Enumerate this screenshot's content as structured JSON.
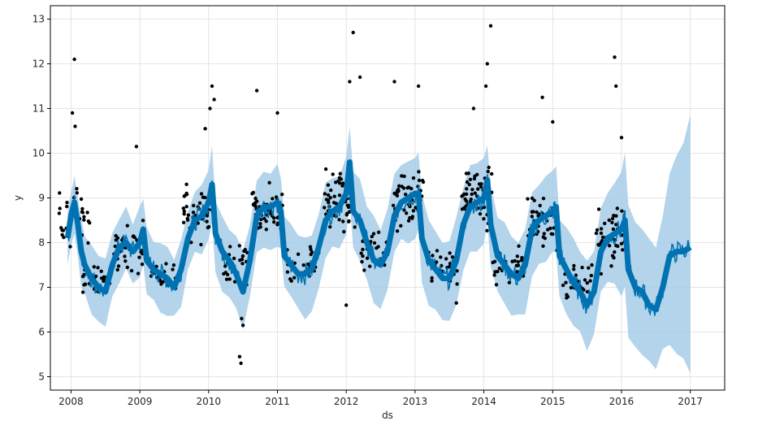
{
  "chart_data": {
    "type": "line",
    "title": "",
    "xlabel": "ds",
    "ylabel": "y",
    "xlim": [
      2007.7,
      2017.5
    ],
    "ylim": [
      4.7,
      13.3
    ],
    "x_ticks": [
      {
        "value": 2008,
        "label": "2008"
      },
      {
        "value": 2009,
        "label": "2009"
      },
      {
        "value": 2010,
        "label": "2010"
      },
      {
        "value": 2011,
        "label": "2011"
      },
      {
        "value": 2012,
        "label": "2012"
      },
      {
        "value": 2013,
        "label": "2013"
      },
      {
        "value": 2014,
        "label": "2014"
      },
      {
        "value": 2015,
        "label": "2015"
      },
      {
        "value": 2016,
        "label": "2016"
      },
      {
        "value": 2017,
        "label": "2017"
      }
    ],
    "y_ticks": [
      {
        "value": 5,
        "label": "5"
      },
      {
        "value": 6,
        "label": "6"
      },
      {
        "value": 7,
        "label": "7"
      },
      {
        "value": 8,
        "label": "8"
      },
      {
        "value": 9,
        "label": "9"
      },
      {
        "value": 10,
        "label": "10"
      },
      {
        "value": 11,
        "label": "11"
      },
      {
        "value": 12,
        "label": "12"
      },
      {
        "value": 13,
        "label": "13"
      }
    ],
    "grid": true,
    "colors": {
      "forecast": "#0072b2",
      "interval": "#a6cde8",
      "observations": "#000000",
      "grid": "#dddddd"
    },
    "forecast": {
      "x": [
        2007.95,
        2008.0,
        2008.05,
        2008.1,
        2008.15,
        2008.2,
        2008.3,
        2008.4,
        2008.5,
        2008.6,
        2008.7,
        2008.8,
        2008.9,
        2009.0,
        2009.05,
        2009.1,
        2009.2,
        2009.3,
        2009.4,
        2009.5,
        2009.6,
        2009.7,
        2009.8,
        2009.9,
        2010.0,
        2010.05,
        2010.1,
        2010.2,
        2010.3,
        2010.4,
        2010.5,
        2010.6,
        2010.7,
        2010.8,
        2010.9,
        2011.0,
        2011.05,
        2011.1,
        2011.2,
        2011.3,
        2011.4,
        2011.5,
        2011.6,
        2011.7,
        2011.8,
        2011.9,
        2012.0,
        2012.05,
        2012.1,
        2012.2,
        2012.3,
        2012.4,
        2012.5,
        2012.6,
        2012.7,
        2012.8,
        2012.9,
        2013.0,
        2013.05,
        2013.1,
        2013.2,
        2013.3,
        2013.4,
        2013.5,
        2013.6,
        2013.7,
        2013.8,
        2013.9,
        2014.0,
        2014.05,
        2014.1,
        2014.2,
        2014.3,
        2014.4,
        2014.5,
        2014.6,
        2014.7,
        2014.8,
        2014.9,
        2015.0,
        2015.05,
        2015.1,
        2015.2,
        2015.3,
        2015.4,
        2015.5,
        2015.6,
        2015.7,
        2015.8,
        2015.9,
        2016.0,
        2016.05,
        2016.1,
        2016.2,
        2016.3,
        2016.4,
        2016.5,
        2016.6,
        2016.7,
        2016.8,
        2016.9,
        2017.0
      ],
      "yhat": [
        8.1,
        8.6,
        8.9,
        8.4,
        7.8,
        7.5,
        7.2,
        7.0,
        6.9,
        7.5,
        7.9,
        8.0,
        7.8,
        8.0,
        8.3,
        7.6,
        7.4,
        7.3,
        7.2,
        7.0,
        7.4,
        8.1,
        8.5,
        8.6,
        8.9,
        9.3,
        8.2,
        7.8,
        7.6,
        7.3,
        6.9,
        7.6,
        8.6,
        8.8,
        8.8,
        8.9,
        8.7,
        7.7,
        7.5,
        7.3,
        7.3,
        7.4,
        7.9,
        8.5,
        8.7,
        8.8,
        9.1,
        9.8,
        8.7,
        8.5,
        8.0,
        7.6,
        7.5,
        7.8,
        8.6,
        8.9,
        9.0,
        9.1,
        9.1,
        8.1,
        7.6,
        7.4,
        7.2,
        7.2,
        7.6,
        8.4,
        8.8,
        8.9,
        9.0,
        9.4,
        8.4,
        7.7,
        7.5,
        7.3,
        7.2,
        7.5,
        8.3,
        8.5,
        8.6,
        8.7,
        8.8,
        7.7,
        7.4,
        7.1,
        6.9,
        6.6,
        6.9,
        7.8,
        8.1,
        8.2,
        8.3,
        8.5,
        7.4,
        7.0,
        6.9,
        6.6,
        6.5,
        7.0,
        7.7,
        7.8,
        7.8,
        7.9
      ],
      "yhat_lower": [
        7.5,
        8.0,
        8.2,
        7.6,
        7.0,
        6.8,
        6.5,
        6.3,
        6.2,
        6.8,
        7.2,
        7.3,
        7.1,
        7.3,
        7.5,
        6.9,
        6.6,
        6.5,
        6.4,
        6.3,
        6.6,
        7.3,
        7.7,
        7.8,
        8.1,
        8.4,
        7.4,
        7.0,
        6.8,
        6.5,
        6.1,
        6.8,
        7.7,
        7.9,
        7.9,
        8.0,
        7.8,
        6.9,
        6.7,
        6.5,
        6.4,
        6.5,
        7.0,
        7.6,
        7.8,
        7.9,
        8.2,
        8.8,
        7.8,
        7.6,
        7.1,
        6.7,
        6.6,
        6.9,
        7.7,
        8.0,
        8.1,
        8.2,
        8.2,
        7.2,
        6.7,
        6.5,
        6.3,
        6.3,
        6.7,
        7.5,
        7.9,
        7.9,
        8.0,
        8.4,
        7.4,
        6.8,
        6.6,
        6.4,
        6.3,
        6.5,
        7.3,
        7.5,
        7.6,
        7.7,
        7.8,
        6.7,
        6.4,
        6.1,
        5.9,
        5.6,
        5.9,
        6.8,
        7.0,
        7.0,
        6.9,
        7.0,
        5.9,
        5.6,
        5.5,
        5.3,
        5.2,
        5.5,
        5.8,
        5.6,
        5.4,
        5.2
      ],
      "yhat_upper": [
        8.7,
        9.2,
        9.5,
        9.1,
        8.5,
        8.2,
        7.9,
        7.7,
        7.6,
        8.2,
        8.6,
        8.7,
        8.5,
        8.7,
        9.0,
        8.3,
        8.1,
        8.0,
        7.9,
        7.7,
        8.1,
        8.8,
        9.2,
        9.3,
        9.6,
        10.1,
        9.0,
        8.6,
        8.4,
        8.1,
        7.7,
        8.4,
        9.4,
        9.6,
        9.6,
        9.7,
        9.5,
        8.5,
        8.3,
        8.1,
        8.1,
        8.2,
        8.7,
        9.3,
        9.5,
        9.6,
        9.9,
        10.7,
        9.6,
        9.4,
        8.9,
        8.5,
        8.4,
        8.7,
        9.5,
        9.8,
        9.9,
        10.0,
        10.0,
        9.0,
        8.5,
        8.3,
        8.1,
        8.1,
        8.5,
        9.3,
        9.7,
        9.8,
        9.9,
        10.3,
        9.3,
        8.6,
        8.4,
        8.2,
        8.1,
        8.4,
        9.2,
        9.4,
        9.5,
        9.6,
        9.7,
        8.6,
        8.3,
        8.0,
        7.8,
        7.5,
        7.8,
        8.7,
        9.1,
        9.3,
        9.6,
        9.9,
        8.8,
        8.4,
        8.3,
        8.0,
        8.0,
        8.6,
        9.5,
        9.9,
        10.3,
        10.9
      ]
    },
    "observations_seasonal": [
      {
        "center": 2008.05,
        "mean": 8.5,
        "spread": 0.6,
        "count": 30
      },
      {
        "center": 2008.35,
        "mean": 7.2,
        "spread": 0.3,
        "count": 28
      },
      {
        "center": 2008.85,
        "mean": 7.9,
        "spread": 0.5,
        "count": 40
      },
      {
        "center": 2009.35,
        "mean": 7.3,
        "spread": 0.3,
        "count": 30
      },
      {
        "center": 2009.85,
        "mean": 8.7,
        "spread": 0.6,
        "count": 45
      },
      {
        "center": 2010.4,
        "mean": 7.5,
        "spread": 0.4,
        "count": 30
      },
      {
        "center": 2010.85,
        "mean": 8.8,
        "spread": 0.6,
        "count": 45
      },
      {
        "center": 2011.35,
        "mean": 7.5,
        "spread": 0.4,
        "count": 28
      },
      {
        "center": 2011.9,
        "mean": 8.9,
        "spread": 0.7,
        "count": 55
      },
      {
        "center": 2012.4,
        "mean": 7.8,
        "spread": 0.4,
        "count": 30
      },
      {
        "center": 2012.9,
        "mean": 9.0,
        "spread": 0.6,
        "count": 50
      },
      {
        "center": 2013.4,
        "mean": 7.5,
        "spread": 0.4,
        "count": 30
      },
      {
        "center": 2013.9,
        "mean": 9.0,
        "spread": 0.7,
        "count": 55
      },
      {
        "center": 2014.35,
        "mean": 7.5,
        "spread": 0.4,
        "count": 30
      },
      {
        "center": 2014.85,
        "mean": 8.5,
        "spread": 0.6,
        "count": 45
      },
      {
        "center": 2015.35,
        "mean": 7.1,
        "spread": 0.4,
        "count": 30
      },
      {
        "center": 2015.85,
        "mean": 8.1,
        "spread": 0.6,
        "count": 45
      }
    ],
    "observations_outliers": [
      {
        "x": 2008.05,
        "y": 12.1
      },
      {
        "x": 2008.02,
        "y": 10.9
      },
      {
        "x": 2008.06,
        "y": 10.6
      },
      {
        "x": 2008.95,
        "y": 10.15
      },
      {
        "x": 2009.95,
        "y": 10.55
      },
      {
        "x": 2010.05,
        "y": 11.5
      },
      {
        "x": 2010.08,
        "y": 11.2
      },
      {
        "x": 2010.02,
        "y": 11.0
      },
      {
        "x": 2010.45,
        "y": 5.45
      },
      {
        "x": 2010.47,
        "y": 5.3
      },
      {
        "x": 2010.5,
        "y": 6.15
      },
      {
        "x": 2010.48,
        "y": 6.3
      },
      {
        "x": 2010.7,
        "y": 11.4
      },
      {
        "x": 2011.0,
        "y": 10.9
      },
      {
        "x": 2012.05,
        "y": 11.6
      },
      {
        "x": 2012.1,
        "y": 12.7
      },
      {
        "x": 2012.2,
        "y": 11.7
      },
      {
        "x": 2012.0,
        "y": 6.6
      },
      {
        "x": 2012.7,
        "y": 11.6
      },
      {
        "x": 2013.05,
        "y": 11.5
      },
      {
        "x": 2013.6,
        "y": 6.65
      },
      {
        "x": 2013.85,
        "y": 11.0
      },
      {
        "x": 2014.05,
        "y": 12.0
      },
      {
        "x": 2014.1,
        "y": 12.85
      },
      {
        "x": 2014.03,
        "y": 11.5
      },
      {
        "x": 2014.85,
        "y": 11.25
      },
      {
        "x": 2015.0,
        "y": 10.7
      },
      {
        "x": 2015.9,
        "y": 12.15
      },
      {
        "x": 2015.92,
        "y": 11.5
      },
      {
        "x": 2016.0,
        "y": 10.35
      }
    ]
  }
}
